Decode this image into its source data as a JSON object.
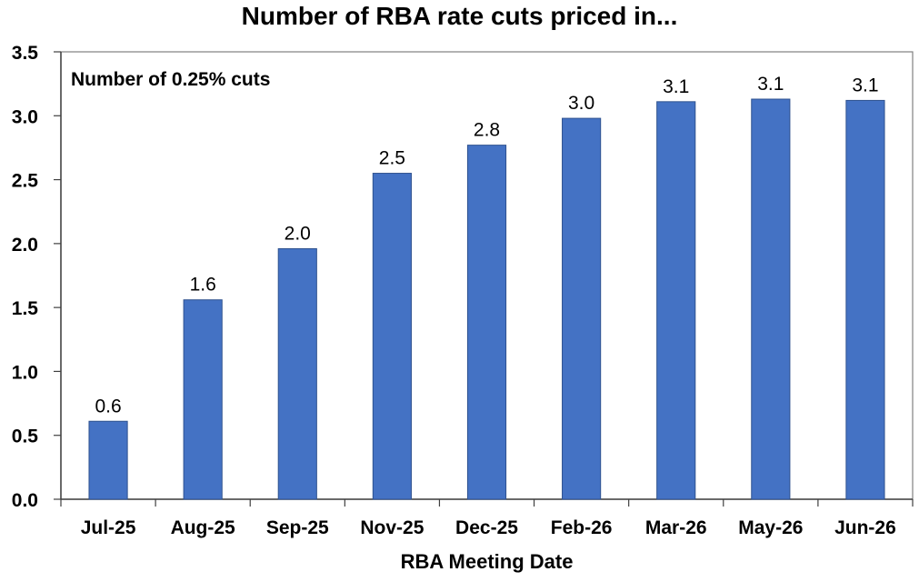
{
  "chart_data": {
    "type": "bar",
    "title": "Number of RBA rate cuts priced in...",
    "xlabel": "RBA Meeting Date",
    "ylabel": "",
    "annotation": "Number of 0.25% cuts",
    "categories": [
      "Jul-25",
      "Aug-25",
      "Sep-25",
      "Nov-25",
      "Dec-25",
      "Feb-26",
      "Mar-26",
      "May-26",
      "Jun-26"
    ],
    "values": [
      0.61,
      1.56,
      1.96,
      2.55,
      2.77,
      2.98,
      3.11,
      3.13,
      3.12
    ],
    "data_labels": [
      "0.6",
      "1.6",
      "2.0",
      "2.5",
      "2.8",
      "3.0",
      "3.1",
      "3.1",
      "3.1"
    ],
    "ylim": [
      0,
      3.5
    ],
    "yticks": [
      0.0,
      0.5,
      1.0,
      1.5,
      2.0,
      2.5,
      3.0,
      3.5
    ],
    "ytick_labels": [
      "0.0",
      "0.5",
      "1.0",
      "1.5",
      "2.0",
      "2.5",
      "3.0",
      "3.5"
    ],
    "grid": false,
    "legend": "none",
    "bar_color": "#4472C4",
    "bar_edge_color": "#2F528F"
  }
}
